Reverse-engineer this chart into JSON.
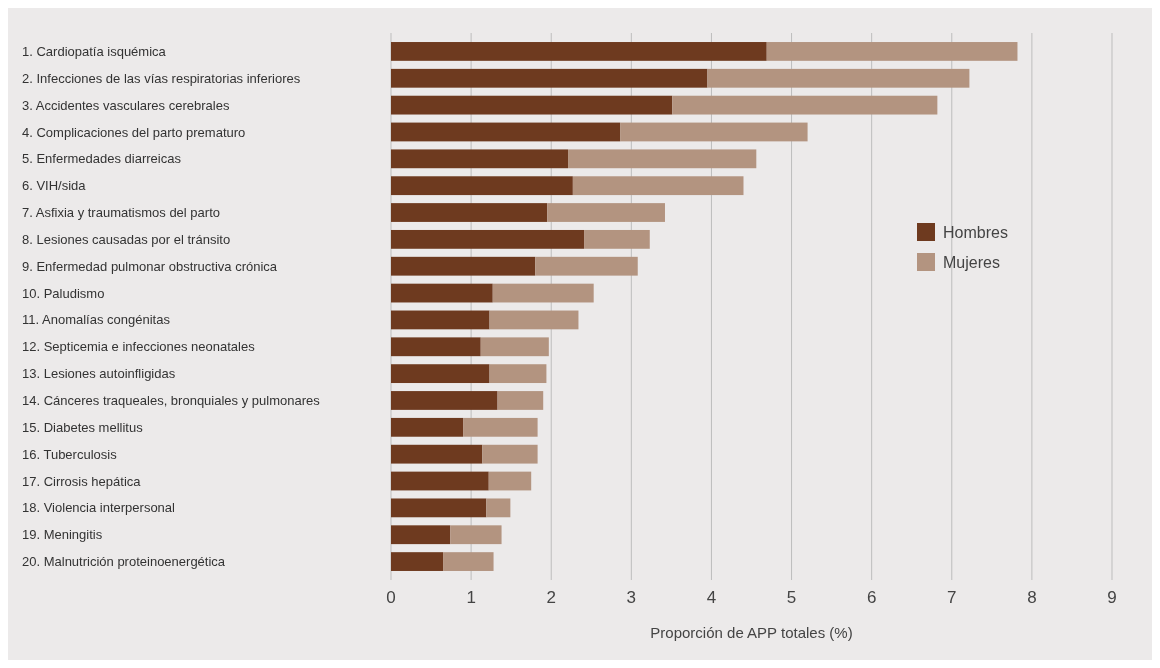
{
  "chart_data": {
    "type": "bar",
    "orientation": "horizontal",
    "stacked": true,
    "categories": [
      "1. Cardiopatía isquémica",
      "2. Infecciones de las vías respiratorias inferiores",
      "3. Accidentes vasculares cerebrales",
      "4. Complicaciones del parto prematuro",
      "5. Enfermedades diarreicas",
      "6. VIH/sida",
      "7. Asfixia y traumatismos del parto",
      "8. Lesiones causadas por el tránsito",
      "9. Enfermedad pulmonar obstructiva crónica",
      "10. Paludismo",
      "11. Anomalías congénitas",
      "12. Septicemia e infecciones neonatales",
      "13. Lesiones autoinfligidas",
      "14. Cánceres traqueales, bronquiales y pulmonares",
      "15. Diabetes mellitus",
      "16. Tuberculosis",
      "17. Cirrosis hepática",
      "18. Violencia interpersonal",
      "19. Meningitis",
      "20. Malnutrición proteinoenergética"
    ],
    "series": [
      {
        "name": "Hombres",
        "color": "#6e3a1f",
        "values": [
          4.69,
          3.95,
          3.51,
          2.86,
          2.21,
          2.27,
          1.95,
          2.41,
          1.8,
          1.27,
          1.23,
          1.12,
          1.23,
          1.33,
          0.9,
          1.14,
          1.22,
          1.19,
          0.74,
          0.65
        ]
      },
      {
        "name": "Mujeres",
        "color": "#b39480",
        "values": [
          3.13,
          3.27,
          3.31,
          2.34,
          2.35,
          2.13,
          1.47,
          0.82,
          1.28,
          1.26,
          1.11,
          0.85,
          0.71,
          0.57,
          0.93,
          0.69,
          0.53,
          0.3,
          0.64,
          0.63
        ]
      }
    ],
    "xlabel": "Proporción de APP totales (%)",
    "xlim": [
      0,
      9
    ],
    "xticks": [
      0,
      1,
      2,
      3,
      4,
      5,
      6,
      7,
      8,
      9
    ],
    "grid": "x",
    "legend": "right"
  }
}
